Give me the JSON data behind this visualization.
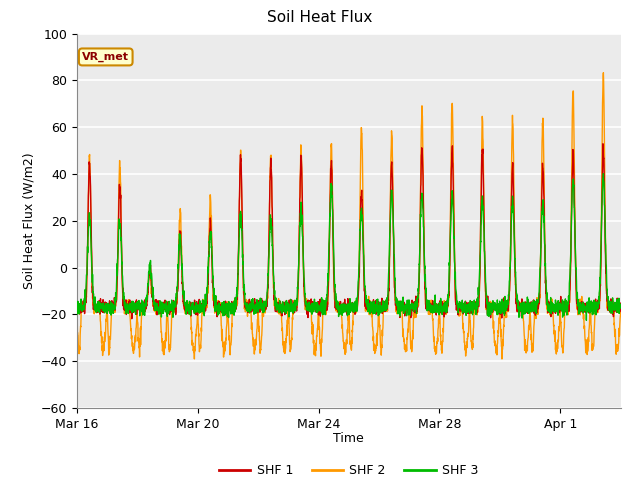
{
  "title": "Soil Heat Flux",
  "ylabel": "Soil Heat Flux (W/m2)",
  "xlabel": "Time",
  "ylim": [
    -60,
    100
  ],
  "yticks": [
    -60,
    -40,
    -20,
    0,
    20,
    40,
    60,
    80,
    100
  ],
  "bg_color": "#e8e8e8",
  "plot_bg": "#ebebeb",
  "colors": {
    "SHF 1": "#cc0000",
    "SHF 2": "#ff9900",
    "SHF 3": "#00bb00"
  },
  "annotation_text": "VR_met",
  "x_tick_labels": [
    "Mar 16",
    "Mar 20",
    "Mar 24",
    "Mar 28",
    "Apr 1"
  ],
  "x_tick_positions": [
    0,
    4,
    8,
    12,
    16
  ],
  "n_days": 18,
  "pts_per_day": 144
}
